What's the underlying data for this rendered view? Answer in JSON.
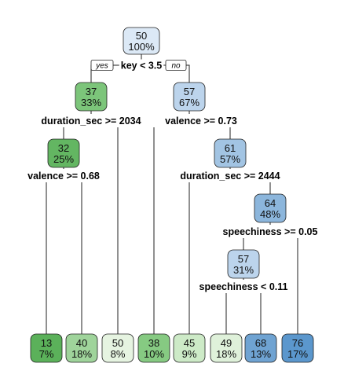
{
  "tree": {
    "root_branch_labels": {
      "yes": "yes",
      "no": "no"
    },
    "nodes": [
      {
        "id": "n1",
        "value": "50",
        "percent": "100%",
        "color": "#dce9f6",
        "split": "key < 3.5"
      },
      {
        "id": "n2",
        "value": "37",
        "percent": "33%",
        "color": "#7cc57a",
        "split": "duration_sec >= 2034"
      },
      {
        "id": "n3",
        "value": "57",
        "percent": "67%",
        "color": "#bcd4ec",
        "split": "valence >= 0.73"
      },
      {
        "id": "n4",
        "value": "32",
        "percent": "25%",
        "color": "#63b662",
        "split": "valence >= 0.68"
      },
      {
        "id": "n5",
        "value": "61",
        "percent": "57%",
        "color": "#a2c4e3",
        "split": "duration_sec >= 2444"
      },
      {
        "id": "n6",
        "value": "64",
        "percent": "48%",
        "color": "#8cb6dc",
        "split": "speechiness >= 0.05"
      },
      {
        "id": "n7",
        "value": "57",
        "percent": "31%",
        "color": "#bcd4ec",
        "split": "speechiness < 0.11"
      },
      {
        "id": "l1",
        "value": "13",
        "percent": "7%",
        "color": "#5bb15a",
        "split": ""
      },
      {
        "id": "l2",
        "value": "40",
        "percent": "18%",
        "color": "#9fd49b",
        "split": ""
      },
      {
        "id": "l3",
        "value": "50",
        "percent": "8%",
        "color": "#e6f4e1",
        "split": ""
      },
      {
        "id": "l4",
        "value": "38",
        "percent": "10%",
        "color": "#86ca82",
        "split": ""
      },
      {
        "id": "l5",
        "value": "45",
        "percent": "9%",
        "color": "#cdeac7",
        "split": ""
      },
      {
        "id": "l6",
        "value": "49",
        "percent": "18%",
        "color": "#dff1da",
        "split": ""
      },
      {
        "id": "l7",
        "value": "68",
        "percent": "13%",
        "color": "#6fa3d2",
        "split": ""
      },
      {
        "id": "l8",
        "value": "76",
        "percent": "17%",
        "color": "#5b97cd",
        "split": ""
      }
    ]
  }
}
